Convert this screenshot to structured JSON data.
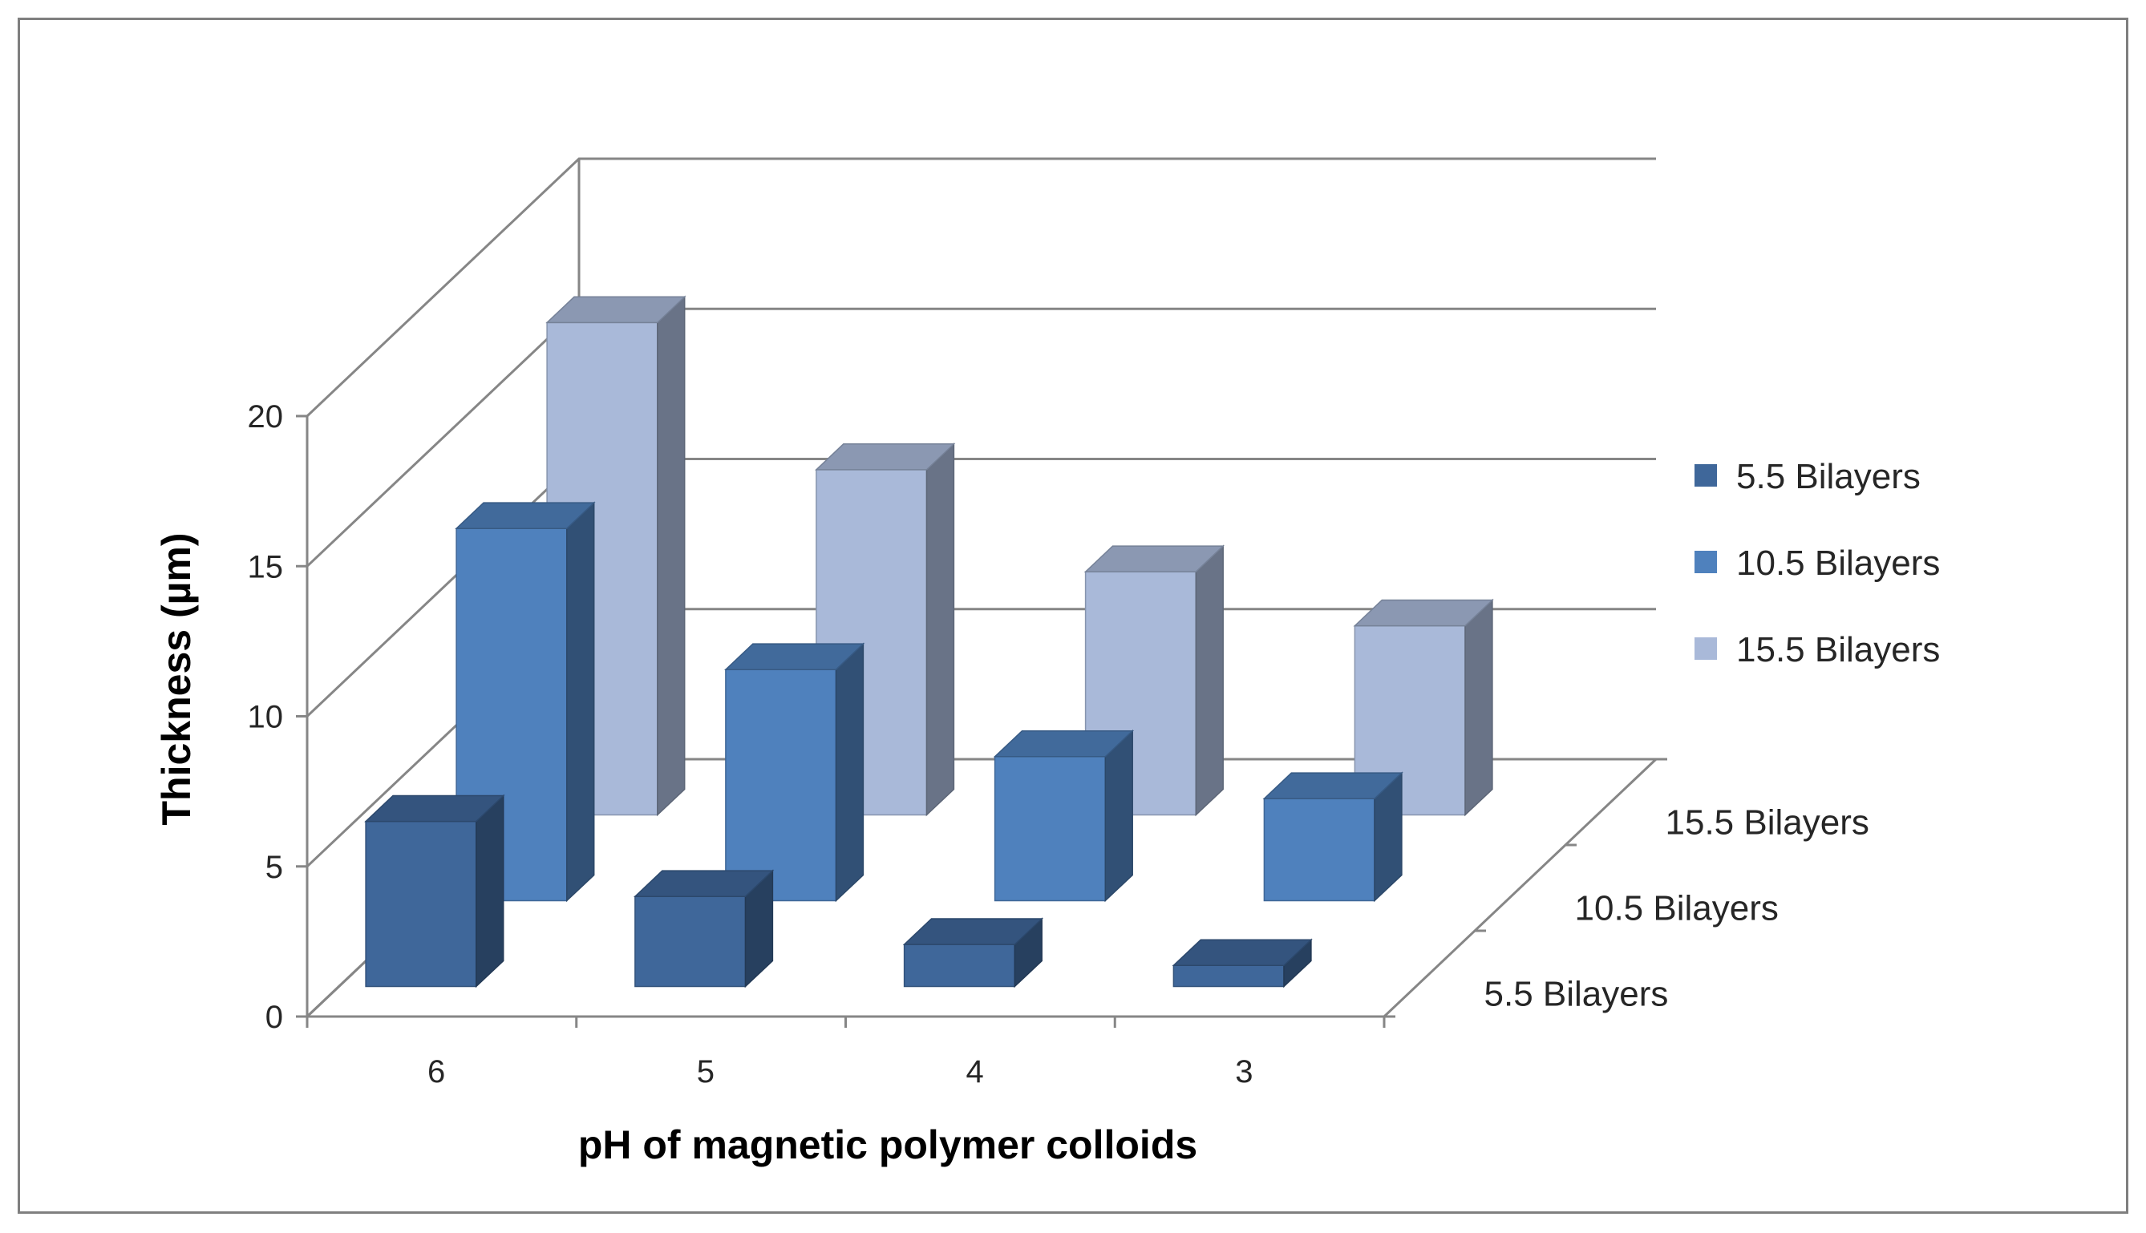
{
  "chart_data": {
    "type": "bar",
    "variant": "3d-column",
    "categories": [
      "6",
      "5",
      "4",
      "3"
    ],
    "series": [
      {
        "name": "5.5 Bilayers",
        "values": [
          5.5,
          3.0,
          1.4,
          0.7
        ],
        "color": "#3f679a"
      },
      {
        "name": "10.5 Bilayers",
        "values": [
          12.4,
          7.7,
          4.8,
          3.4
        ],
        "color": "#4f81bd"
      },
      {
        "name": "15.5 Bilayers",
        "values": [
          16.4,
          11.5,
          8.1,
          6.3
        ],
        "color": "#a9b9d9"
      }
    ],
    "depth_labels": [
      "15.5 Bilayers",
      "10.5 Bilayers",
      "5.5 Bilayers"
    ],
    "title": "",
    "xlabel": "pH of magnetic  polymer colloids",
    "ylabel": "Thickness (µm)",
    "ylim": [
      0,
      20
    ],
    "yticks": [
      "0",
      "5",
      "10",
      "15",
      "20"
    ],
    "grid": true,
    "legend_position": "right"
  }
}
